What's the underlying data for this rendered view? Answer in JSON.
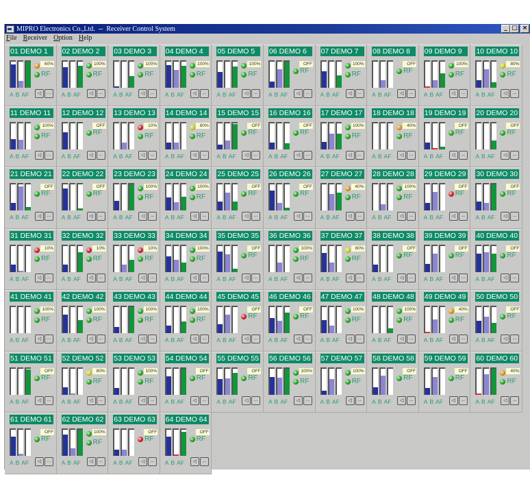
{
  "window": {
    "title": "MIPRO Electronics Co.,Ltd.  --  Receiver Control System",
    "buttons": {
      "minimize": "_",
      "maximize": "□",
      "close": "×"
    }
  },
  "menu": [
    {
      "label": "File",
      "accel": "F"
    },
    {
      "label": "Receiver",
      "accel": "R"
    },
    {
      "label": "Option",
      "accel": "O"
    },
    {
      "label": "Help",
      "accel": "H"
    }
  ],
  "tile_labels": {
    "a": "A",
    "b": "B",
    "af": "AF",
    "rf": "RF",
    "more": "..."
  },
  "colors": {
    "led_green": "#2bb52b",
    "led_yellow": "#d8e020",
    "led_orange": "#f0a020",
    "led_red": "#e02a2a",
    "name_bg": "#0e8a66",
    "bar_a": "#25329a",
    "bar_b": "#8b86d4",
    "bar_af": "#11963c"
  },
  "receivers": [
    {
      "name": "01 DEMO 1",
      "a": 90,
      "b": 27,
      "af": 100,
      "bat": "orange",
      "pct": "60%",
      "rf": "green"
    },
    {
      "name": "02 DEMO 2",
      "a": 78,
      "b": 0,
      "af": 85,
      "bat": "green",
      "pct": "100%",
      "rf": "green"
    },
    {
      "name": "03 DEMO 3",
      "a": 5,
      "b": 0,
      "af": 45,
      "bat": "green",
      "pct": "100%",
      "rf": "green"
    },
    {
      "name": "04 DEMO 4",
      "a": 88,
      "b": 68,
      "af": 85,
      "bat": "green",
      "pct": "100%",
      "rf": "green"
    },
    {
      "name": "05 DEMO 5",
      "a": 60,
      "b": 0,
      "af": 82,
      "bat": "green",
      "pct": "100%",
      "rf": "green"
    },
    {
      "name": "06 DEMO 6",
      "a": 25,
      "b": 72,
      "af": 100,
      "bat": "none",
      "pct": "OFF",
      "rf": "green"
    },
    {
      "name": "07 DEMO 7",
      "a": 62,
      "b": 0,
      "af": 48,
      "bat": "green",
      "pct": "100%",
      "rf": "green"
    },
    {
      "name": "08 DEMO 8",
      "a": 0,
      "b": 30,
      "af": 0,
      "bat": "none",
      "pct": "OFF",
      "rf": "green"
    },
    {
      "name": "09 DEMO 9",
      "a": 2,
      "redA": true,
      "b": 30,
      "af": 55,
      "bat": "green",
      "pct": "100%",
      "rf": "green"
    },
    {
      "name": "10 DEMO 10",
      "a": 28,
      "b": 70,
      "af": 20,
      "bat": "yellow",
      "pct": "80%",
      "rf": "green"
    },
    {
      "name": "11 DEMO 11",
      "a": 38,
      "b": 35,
      "af": 0,
      "bat": "green",
      "pct": "100%",
      "rf": "green"
    },
    {
      "name": "12 DEMO 12",
      "a": 65,
      "b": 0,
      "af": 0,
      "bat": "none",
      "pct": "OFF",
      "rf": "green"
    },
    {
      "name": "13 DEMO 13",
      "a": 0,
      "b": 25,
      "af": 0,
      "bat": "red",
      "pct": "10%",
      "rf": "green"
    },
    {
      "name": "14 DEMO 14",
      "a": 25,
      "b": 25,
      "af": 0,
      "bat": "yellow",
      "pct": "80%",
      "rf": "green"
    },
    {
      "name": "15 DEMO 15",
      "a": 18,
      "b": 33,
      "af": 95,
      "bat": "none",
      "pct": "OFF",
      "rf": "green"
    },
    {
      "name": "16 DEMO 16",
      "a": 25,
      "b": 0,
      "af": 22,
      "bat": "none",
      "pct": "OFF",
      "rf": "green"
    },
    {
      "name": "17 DEMO 17",
      "a": 28,
      "b": 58,
      "af": 58,
      "bat": "green",
      "pct": "100%",
      "rf": "green"
    },
    {
      "name": "18 DEMO 18",
      "a": 0,
      "b": 0,
      "af": 0,
      "bat": "orange",
      "pct": "40%",
      "rf": "green"
    },
    {
      "name": "19 DEMO 19",
      "a": 25,
      "b": 2,
      "redB": true,
      "af": 8,
      "bat": "none",
      "pct": "OFF",
      "rf": "green"
    },
    {
      "name": "20 DEMO 20",
      "a": 0,
      "b": 0,
      "af": 32,
      "bat": "none",
      "pct": "OFF",
      "rf": "green"
    },
    {
      "name": "21 DEMO 21",
      "a": 28,
      "b": 92,
      "af": 12,
      "bat": "none",
      "pct": "OFF",
      "rf": "green"
    },
    {
      "name": "22 DEMO 22",
      "a": 85,
      "b": 0,
      "af": 7,
      "bat": "none",
      "pct": "OFF",
      "rf": "green"
    },
    {
      "name": "23 DEMO 23",
      "a": 36,
      "b": 0,
      "af": 100,
      "bat": "green",
      "pct": "100%",
      "rf": "green"
    },
    {
      "name": "24 DEMO 24",
      "a": 50,
      "b": 32,
      "af": 53,
      "bat": "green",
      "pct": "100%",
      "rf": "green"
    },
    {
      "name": "25 DEMO 25",
      "a": 33,
      "b": 68,
      "af": 33,
      "bat": "none",
      "pct": "OFF",
      "rf": "green"
    },
    {
      "name": "26 DEMO 26",
      "a": 77,
      "b": 30,
      "af": 10,
      "bat": "none",
      "pct": "OFF",
      "rf": "green"
    },
    {
      "name": "27 DEMO 27",
      "a": 0,
      "b": 62,
      "af": 68,
      "bat": "orange",
      "pct": "40%",
      "rf": "green"
    },
    {
      "name": "28 DEMO 28",
      "a": 0,
      "b": 25,
      "af": 0,
      "bat": "green",
      "pct": "100%",
      "rf": "green"
    },
    {
      "name": "29 DEMO 29",
      "a": 28,
      "b": 72,
      "af": 0,
      "bat": "none",
      "pct": "OFF",
      "rf": "red"
    },
    {
      "name": "30 DEMO 30",
      "a": 35,
      "b": 28,
      "af": 100,
      "bat": "none",
      "pct": "OFF",
      "rf": "green"
    },
    {
      "name": "31 DEMO 31",
      "a": 28,
      "b": 5,
      "af": 0,
      "bat": "red",
      "pct": "10%",
      "rf": "green"
    },
    {
      "name": "32 DEMO 32",
      "a": 28,
      "b": 0,
      "af": 75,
      "bat": "red",
      "pct": "10%",
      "rf": "green"
    },
    {
      "name": "33 DEMO 33",
      "a": 0,
      "b": 28,
      "af": 46,
      "bat": "red",
      "pct": "10%",
      "rf": "green"
    },
    {
      "name": "34 DEMO 34",
      "a": 60,
      "b": 45,
      "af": 35,
      "bat": "green",
      "pct": "100%",
      "rf": "green"
    },
    {
      "name": "35 DEMO 35",
      "a": 78,
      "b": 68,
      "af": 12,
      "bat": "none",
      "pct": "OFF",
      "rf": "green"
    },
    {
      "name": "36 DEMO 36",
      "a": 0,
      "b": 35,
      "af": 0,
      "bat": "green",
      "pct": "100%",
      "rf": "green"
    },
    {
      "name": "37 DEMO 37",
      "a": 72,
      "b": 36,
      "af": 0,
      "bat": "yellow",
      "pct": "80%",
      "rf": "green"
    },
    {
      "name": "38 DEMO 38",
      "a": 28,
      "b": 0,
      "af": 0,
      "bat": "none",
      "pct": "OFF",
      "rf": "green"
    },
    {
      "name": "39 DEMO 39",
      "a": 30,
      "b": 70,
      "af": 0,
      "bat": "none",
      "pct": "OFF",
      "rf": "green"
    },
    {
      "name": "40 DEMO 40",
      "a": 70,
      "b": 75,
      "af": 70,
      "bat": "none",
      "pct": "OFF",
      "rf": "green"
    },
    {
      "name": "41 DEMO 41",
      "a": 0,
      "b": 0,
      "af": 0,
      "bat": "green",
      "pct": "100%",
      "rf": "green"
    },
    {
      "name": "42 DEMO 42",
      "a": 72,
      "b": 0,
      "af": 50,
      "bat": "green",
      "pct": "100%",
      "rf": "green"
    },
    {
      "name": "43 DEMO 43",
      "a": 25,
      "b": 0,
      "af": 100,
      "bat": "green",
      "pct": "100%",
      "rf": "green"
    },
    {
      "name": "44 DEMO 44",
      "a": 30,
      "b": 0,
      "af": 45,
      "bat": "green",
      "pct": "100%",
      "rf": "green"
    },
    {
      "name": "45 DEMO 45",
      "a": 35,
      "b": 70,
      "af": 0,
      "bat": "none",
      "pct": "OFF",
      "rf": "red"
    },
    {
      "name": "46 DEMO 46",
      "a": 58,
      "b": 48,
      "af": 80,
      "bat": "none",
      "pct": "OFF",
      "rf": "green"
    },
    {
      "name": "47 DEMO 47",
      "a": 50,
      "b": 30,
      "af": 0,
      "bat": "green",
      "pct": "100%",
      "rf": "green"
    },
    {
      "name": "48 DEMO 48",
      "a": 0,
      "b": 0,
      "af": 18,
      "bat": "green",
      "pct": "100%",
      "rf": "green"
    },
    {
      "name": "49 DEMO 49",
      "a": 2,
      "redA": true,
      "b": 52,
      "af": 0,
      "bat": "orange",
      "pct": "40%",
      "rf": "green"
    },
    {
      "name": "50 DEMO 50",
      "a": 48,
      "b": 63,
      "af": 40,
      "bat": "none",
      "pct": "OFF",
      "rf": "green"
    },
    {
      "name": "51 DEMO 51",
      "a": 0,
      "b": 0,
      "af": 95,
      "bat": "none",
      "pct": "OFF",
      "rf": "green"
    },
    {
      "name": "52 DEMO 52",
      "a": 28,
      "b": 5,
      "af": 0,
      "bat": "yellow",
      "pct": "80%",
      "rf": "green"
    },
    {
      "name": "53 DEMO 53",
      "a": 25,
      "b": 0,
      "af": 0,
      "bat": "green",
      "pct": "100%",
      "rf": "green"
    },
    {
      "name": "54 DEMO 54",
      "a": 70,
      "b": 0,
      "af": 100,
      "bat": "none",
      "pct": "OFF",
      "rf": "green"
    },
    {
      "name": "55 DEMO 55",
      "a": 60,
      "b": 62,
      "af": 82,
      "bat": "none",
      "pct": "OFF",
      "rf": "green"
    },
    {
      "name": "56 DEMO 56",
      "a": 68,
      "b": 65,
      "af": 100,
      "bat": "green",
      "pct": "100%",
      "rf": "green"
    },
    {
      "name": "57 DEMO 57",
      "a": 15,
      "b": 60,
      "af": 0,
      "bat": "green",
      "pct": "100%",
      "rf": "green"
    },
    {
      "name": "58 DEMO 58",
      "a": 28,
      "b": 72,
      "af": 0,
      "bat": "none",
      "pct": "OFF",
      "rf": "green"
    },
    {
      "name": "59 DEMO 59",
      "a": 25,
      "b": 68,
      "af": 0,
      "bat": "none",
      "pct": "OFF",
      "rf": "green"
    },
    {
      "name": "60 DEMO 60",
      "a": 2,
      "redA": true,
      "b": 78,
      "af": 100,
      "bat": "orange",
      "pct": "40%",
      "rf": "green"
    },
    {
      "name": "61 DEMO 61",
      "a": 75,
      "b": 8,
      "af": 0,
      "bat": "none",
      "pct": "OFF",
      "rf": "green"
    },
    {
      "name": "62 DEMO 62",
      "a": 82,
      "b": 30,
      "af": 100,
      "bat": "green",
      "pct": "100%",
      "rf": "green"
    },
    {
      "name": "63 DEMO 63",
      "a": 25,
      "b": 25,
      "af": 0,
      "bat": "none",
      "pct": "OFF",
      "rf": "red"
    },
    {
      "name": "64 DEMO 64",
      "a": 75,
      "b": 2,
      "redB": true,
      "af": 92,
      "bat": "none",
      "pct": "OFF",
      "rf": "green"
    }
  ]
}
